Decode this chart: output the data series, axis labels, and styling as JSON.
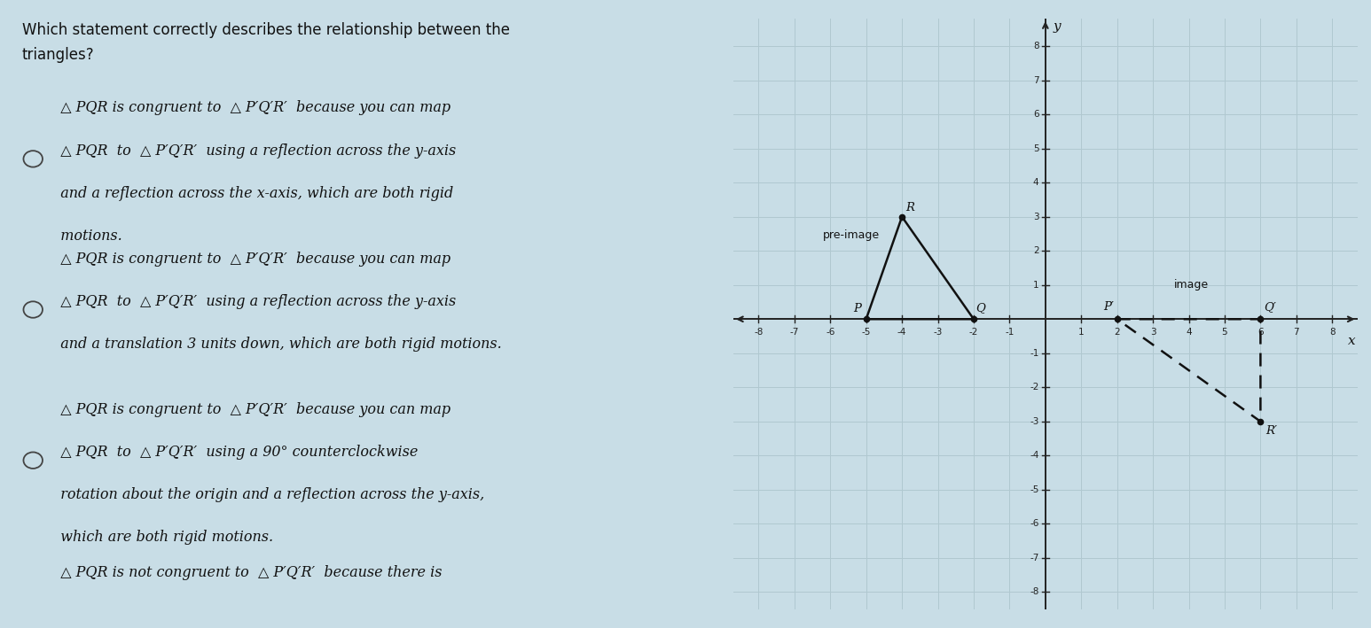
{
  "bg_color": "#c8dde6",
  "title_line1": "Which statement correctly describes the relationship between the",
  "title_line2": "triangles?",
  "options": [
    {
      "lines": [
        "  △ PQR is congruent to  △ P′Q′R′  because you can map",
        "  △ PQR  to  △ P′Q′R′  using a reflection across the y-axis",
        "  and a reflection across the x-axis, which are both rigid",
        "  motions."
      ],
      "has_circle": true,
      "circle_line": 1
    },
    {
      "lines": [
        "  △ PQR is congruent to  △ P′Q′R′  because you can map",
        "  △ PQR  to  △ P′Q′R′  using a reflection across the y-axis",
        "  and a translation 3 units down, which are both rigid motions."
      ],
      "has_circle": true,
      "circle_line": 1
    },
    {
      "lines": [
        "  △ PQR is congruent to  △ P′Q′R′  because you can map",
        "  △ PQR  to  △ P′Q′R′  using a 90° counterclockwise",
        "  rotation about the origin and a reflection across the y-axis,",
        "  which are both rigid motions."
      ],
      "has_circle": true,
      "circle_line": 1
    },
    {
      "lines": [
        "  △ PQR is not congruent to  △ P′Q′R′  because there is"
      ],
      "has_circle": false,
      "circle_line": 0
    }
  ],
  "triangle_PQR": {
    "P": [
      -5,
      0
    ],
    "Q": [
      -2,
      0
    ],
    "R": [
      -4,
      3
    ],
    "label_P": "P",
    "label_Q": "Q",
    "label_R": "R",
    "color": "#111111",
    "linewidth": 1.8
  },
  "triangle_PQR_prime": {
    "P": [
      2,
      0
    ],
    "Q": [
      6,
      0
    ],
    "R": [
      6,
      -3
    ],
    "label_P": "P′",
    "label_Q": "Q′",
    "label_R": "R′",
    "color": "#111111",
    "linewidth": 1.8
  },
  "grid_color": "#b0c8d0",
  "axis_color": "#222222",
  "xlim": [
    -8.7,
    8.7
  ],
  "ylim": [
    -8.5,
    8.8
  ],
  "pre_image_label": "pre-image",
  "image_label": "image"
}
